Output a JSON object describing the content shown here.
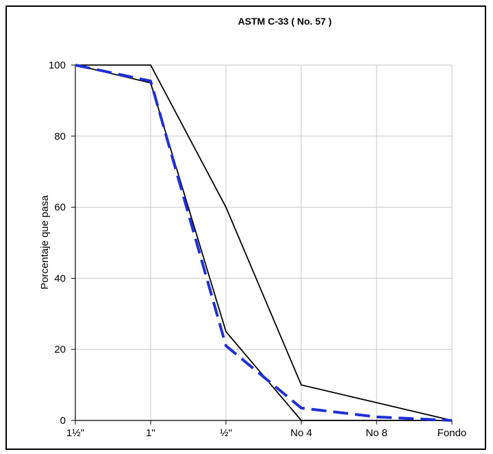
{
  "chart_data": {
    "type": "line",
    "title": "ASTM C-33 ( No. 57 )",
    "xlabel": "",
    "ylabel": "Porcentaje  que pasa",
    "categories": [
      "1½\"",
      "1\"",
      "½\"",
      "No 4",
      "No 8",
      "Fondo"
    ],
    "ylim": [
      0,
      100
    ],
    "yticks": [
      0,
      20,
      40,
      60,
      80,
      100
    ],
    "grid": true,
    "legend": "none",
    "series": [
      {
        "values": [
          100,
          100,
          60,
          10,
          5,
          0
        ],
        "color": "#000000",
        "style": "solid"
      },
      {
        "values": [
          100,
          95,
          25,
          0,
          0,
          0
        ],
        "color": "#000000",
        "style": "solid"
      },
      {
        "values": [
          100,
          95.5,
          21,
          3.5,
          1,
          0
        ],
        "color": "#1f2fd6",
        "style": "dashed"
      }
    ]
  }
}
